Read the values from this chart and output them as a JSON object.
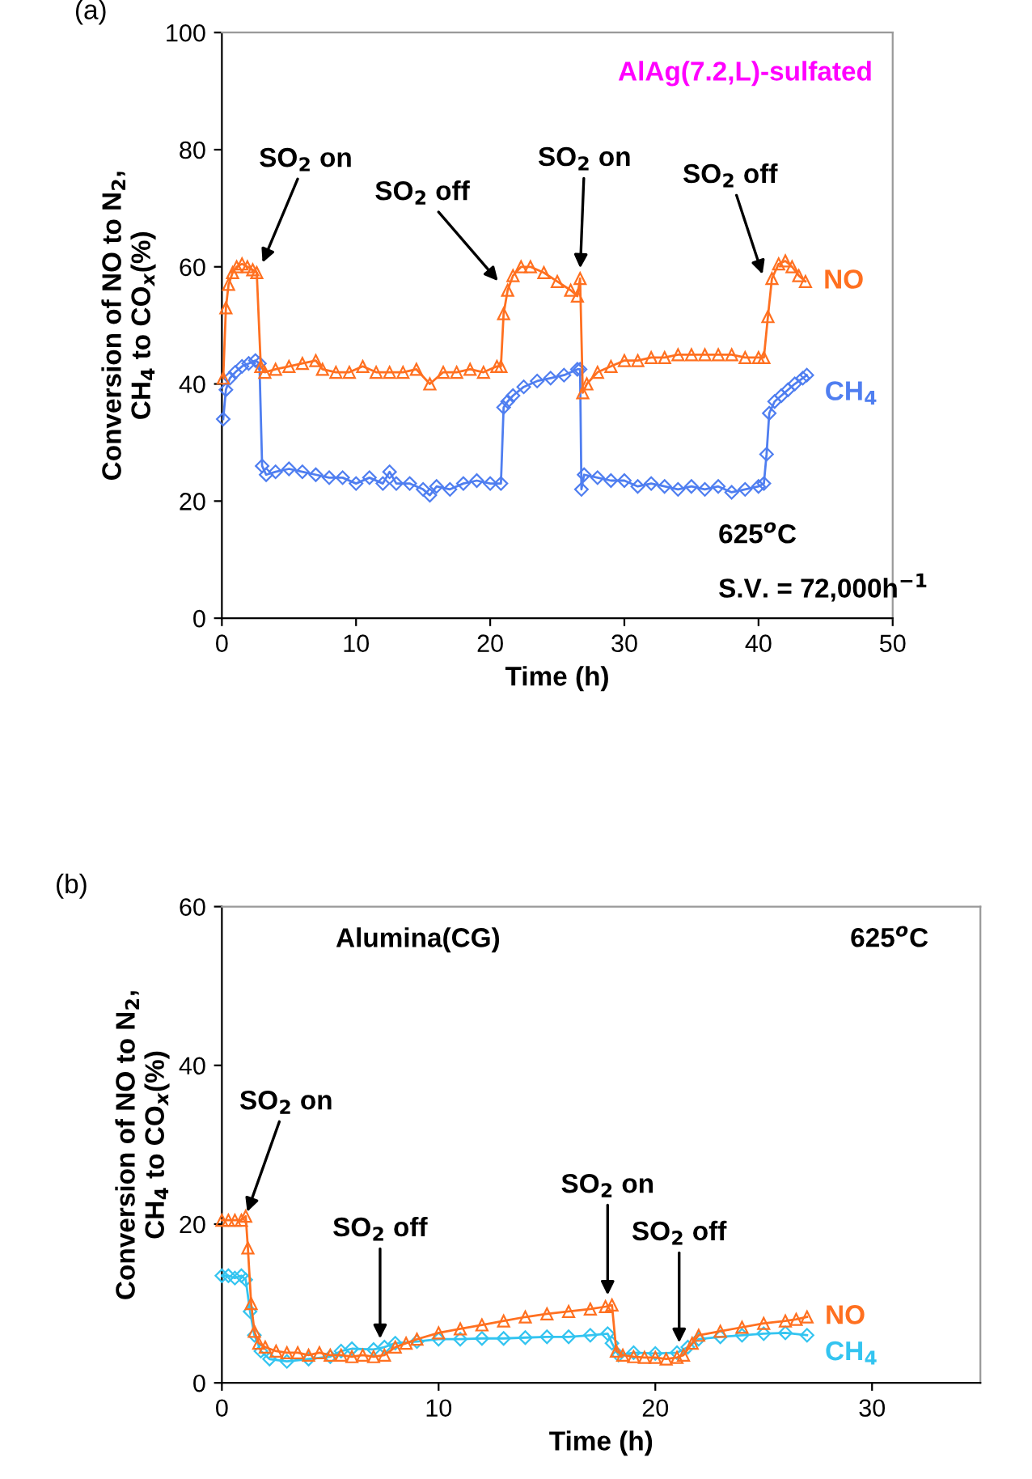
{
  "chart_data": [
    {
      "type": "line",
      "title": "(a)",
      "subtitle": "AlAg(7.2,L)-sulfated",
      "xlabel": "Time (h)",
      "ylabel": "Conversion of NO to N$_{2}$,\nCH$_{4}$ to CO$_{x}$(%)",
      "xlim": [
        0,
        50
      ],
      "xticks": [
        0,
        10,
        20,
        30,
        40,
        50
      ],
      "ylim": [
        0,
        100
      ],
      "yticks": [
        0,
        20,
        40,
        60,
        80,
        100
      ],
      "grid": false,
      "legend": false,
      "series": [
        {
          "name": "NO",
          "color": "#ff7020",
          "marker": "triangle",
          "x": [
            0.1,
            0.3,
            0.5,
            0.8,
            1.1,
            1.5,
            1.9,
            2.3,
            2.6,
            2.9,
            3.2,
            4,
            5,
            6,
            7,
            7.5,
            8.5,
            9.5,
            10.5,
            11.5,
            12.5,
            13.5,
            14.5,
            15.5,
            16.5,
            17.5,
            18.5,
            19.5,
            20.5,
            20.8,
            21.0,
            21.3,
            21.7,
            22.3,
            23,
            24,
            25,
            26,
            26.5,
            26.7,
            26.9,
            27.2,
            28,
            29,
            30,
            31,
            32,
            33,
            34,
            35,
            36,
            37,
            38,
            39,
            40,
            40.4,
            40.7,
            41,
            41.5,
            42,
            42.5,
            43,
            43.5
          ],
          "values": [
            41,
            53,
            57,
            59,
            60,
            60.5,
            60,
            59.5,
            59,
            43,
            42,
            42.5,
            43,
            43.5,
            44,
            42.5,
            42,
            42,
            43,
            42,
            42,
            42,
            42.5,
            40,
            42,
            42,
            42.5,
            42,
            43,
            43,
            52,
            56,
            58.5,
            60,
            60,
            59,
            57.5,
            56,
            55,
            58,
            38.5,
            40,
            42,
            43,
            44,
            44,
            44.5,
            44.5,
            45,
            45,
            45,
            45,
            45,
            44.5,
            44.5,
            44.5,
            51.5,
            58,
            60.5,
            61,
            60,
            58.5,
            57.5
          ]
        },
        {
          "name": "CH$_{4}$",
          "color": "#4f7ef0",
          "marker": "diamond",
          "x": [
            0.1,
            0.3,
            0.6,
            1,
            1.5,
            2,
            2.5,
            2.8,
            3.0,
            3.3,
            4,
            5,
            6,
            7,
            8,
            9,
            10,
            11,
            12,
            12.5,
            13,
            14,
            15,
            15.5,
            16,
            17,
            18,
            19,
            20,
            20.8,
            21,
            21.3,
            21.7,
            22.5,
            23.5,
            24.5,
            25.5,
            26.5,
            26.7,
            26.8,
            27,
            28,
            29,
            30,
            31,
            32,
            33,
            34,
            35,
            36,
            37,
            38,
            39,
            40,
            40.4,
            40.6,
            40.8,
            41.2,
            41.7,
            42.2,
            42.7,
            43.3,
            43.6
          ],
          "values": [
            34,
            39,
            41,
            42,
            43,
            43.5,
            44,
            43.5,
            26,
            24.5,
            25,
            25.5,
            25,
            24.5,
            24,
            24,
            23,
            24,
            23,
            25,
            23,
            23,
            22,
            21,
            22.5,
            22,
            23,
            23.5,
            23,
            23,
            36,
            37,
            38,
            39.5,
            40.5,
            41,
            41.5,
            42.5,
            42.5,
            22,
            24.5,
            24,
            23.5,
            23.5,
            22.5,
            23,
            22.5,
            22,
            22.5,
            22,
            22.5,
            21.5,
            22,
            22.5,
            23,
            28,
            35,
            37,
            38,
            39,
            40,
            41,
            41.5
          ]
        }
      ],
      "annotations": [
        {
          "text": "SO$_{2}$ on",
          "x": 2.9,
          "y": 60
        },
        {
          "text": "SO$_{2}$ off",
          "x": 20.8,
          "y": 57
        },
        {
          "text": "SO$_{2}$ on",
          "x": 26.7,
          "y": 59
        },
        {
          "text": "SO$_{2}$ off",
          "x": 40.4,
          "y": 58
        },
        "625$^{o}$C",
        "S.V. = 72,000h$^{−1}$"
      ]
    },
    {
      "type": "line",
      "title": "(b)",
      "subtitle": "Alumina(CG)",
      "xlabel": "Time (h)",
      "ylabel": "Conversion of NO to N$_{2}$,\nCH$_{4}$ to CO$_{x}$(%)",
      "xlim": [
        0,
        35
      ],
      "xticks": [
        0,
        10,
        20,
        30
      ],
      "ylim": [
        0,
        60
      ],
      "yticks": [
        0,
        20,
        40,
        60
      ],
      "grid": false,
      "legend": false,
      "series": [
        {
          "name": "NO",
          "color": "#ff7020",
          "marker": "triangle",
          "x": [
            0,
            0.3,
            0.6,
            0.9,
            1.1,
            1.2,
            1.35,
            1.5,
            1.7,
            2,
            2.5,
            3,
            3.5,
            4,
            4.5,
            5,
            5.5,
            6,
            6.5,
            7,
            7.5,
            8,
            8.5,
            9,
            10,
            11,
            12,
            13,
            14,
            15,
            16,
            17,
            17.7,
            18,
            18.2,
            18.5,
            19,
            19.5,
            20,
            20.5,
            21,
            21.3,
            21.7,
            22,
            23,
            24,
            25,
            26,
            26.5,
            27
          ],
          "values": [
            20.5,
            20.5,
            20.5,
            20.5,
            21,
            17,
            10,
            6.5,
            5,
            4.5,
            4,
            3.8,
            3.8,
            3.5,
            3.8,
            3.5,
            3.5,
            3.3,
            3.5,
            3.3,
            3.5,
            4.5,
            5,
            5.5,
            6.3,
            6.8,
            7.3,
            7.8,
            8.3,
            8.7,
            9,
            9.3,
            9.6,
            9.8,
            4,
            3.5,
            3.3,
            3.2,
            3.2,
            3,
            3.2,
            3.5,
            5,
            6,
            6.5,
            7,
            7.5,
            7.8,
            8,
            8.3
          ]
        },
        {
          "name": "CH$_{4}$",
          "color": "#33c4f0",
          "marker": "diamond",
          "x": [
            0,
            0.3,
            0.6,
            0.9,
            1.1,
            1.3,
            1.5,
            1.8,
            2.2,
            3,
            4,
            5,
            5.5,
            6,
            7,
            7.5,
            8,
            9,
            10,
            11,
            12,
            13,
            14,
            15,
            16,
            17,
            17.8,
            18,
            18.3,
            19,
            20,
            21,
            21.5,
            22,
            23,
            24,
            25,
            26,
            27
          ],
          "values": [
            13.5,
            13.5,
            13.2,
            13.5,
            13,
            9,
            6,
            4,
            3,
            2.7,
            3,
            3.3,
            4,
            4.3,
            4.2,
            4.5,
            5,
            5.2,
            5.5,
            5.5,
            5.6,
            5.6,
            5.7,
            5.8,
            5.8,
            6,
            6.2,
            5,
            3.5,
            3.8,
            3.7,
            3.8,
            4.5,
            5.5,
            5.8,
            6,
            6.2,
            6.3,
            6
          ]
        }
      ],
      "annotations": [
        {
          "text": "SO$_{2}$ on",
          "x": 1.1,
          "y": 21
        },
        {
          "text": "SO$_{2}$ off",
          "x": 7.3,
          "y": 5
        },
        {
          "text": "SO$_{2}$ on",
          "x": 17.8,
          "y": 10.5
        },
        {
          "text": "SO$_{2}$ off",
          "x": 21.1,
          "y": 4.5
        },
        "625$^{o}$C"
      ]
    }
  ]
}
